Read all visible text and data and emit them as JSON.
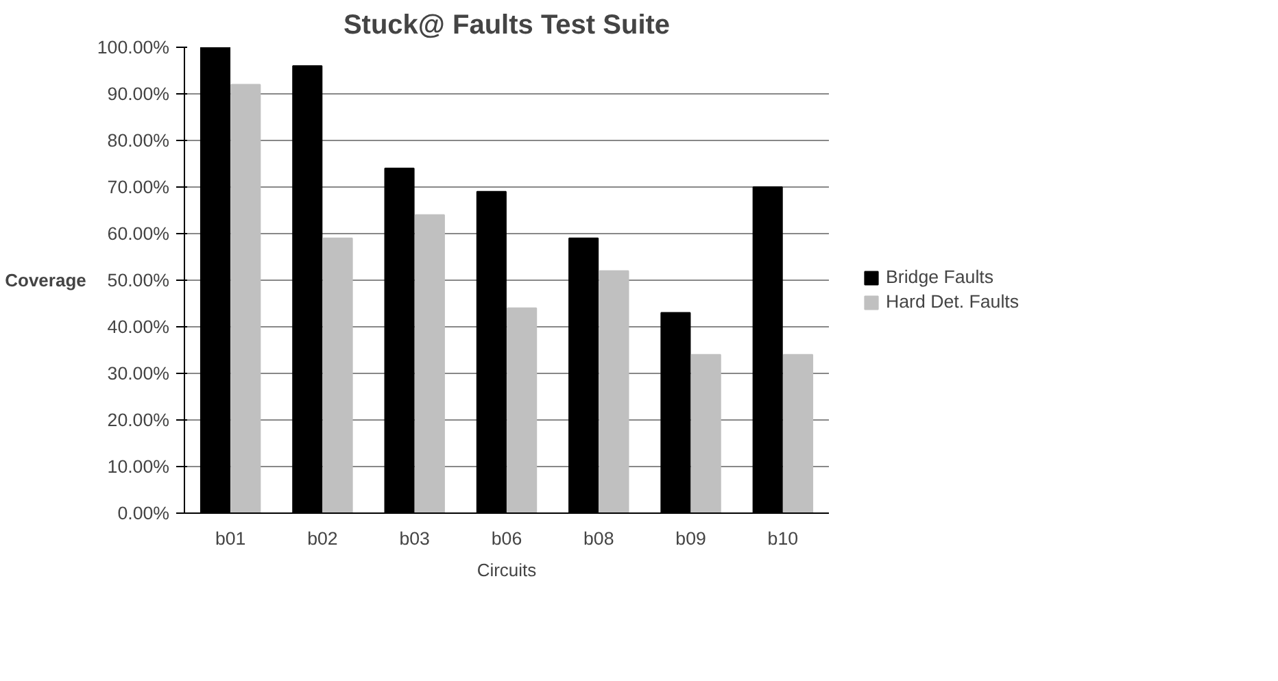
{
  "chart_data": {
    "type": "bar",
    "title": "Stuck@ Faults Test Suite",
    "xlabel": "Circuits",
    "ylabel": "Coverage",
    "categories": [
      "b01",
      "b02",
      "b03",
      "b06",
      "b08",
      "b09",
      "b10"
    ],
    "series": [
      {
        "name": "Bridge Faults",
        "color": "#000000",
        "values": [
          100,
          96,
          74,
          69,
          59,
          43,
          70
        ]
      },
      {
        "name": "Hard Det. Faults",
        "color": "#c0c0c0",
        "values": [
          92,
          59,
          64,
          44,
          52,
          34,
          34
        ]
      }
    ],
    "ylim": [
      0,
      100
    ],
    "yticks": [
      {
        "value": 0,
        "label": "0.00%"
      },
      {
        "value": 10,
        "label": "10.00%"
      },
      {
        "value": 20,
        "label": "20.00%"
      },
      {
        "value": 30,
        "label": "30.00%"
      },
      {
        "value": 40,
        "label": "40.00%"
      },
      {
        "value": 50,
        "label": "50.00%"
      },
      {
        "value": 60,
        "label": "60.00%"
      },
      {
        "value": 70,
        "label": "70.00%"
      },
      {
        "value": 80,
        "label": "80.00%"
      },
      {
        "value": 90,
        "label": "90.00%"
      },
      {
        "value": 100,
        "label": "100.00%"
      }
    ],
    "grid": "y",
    "legend": "right"
  }
}
